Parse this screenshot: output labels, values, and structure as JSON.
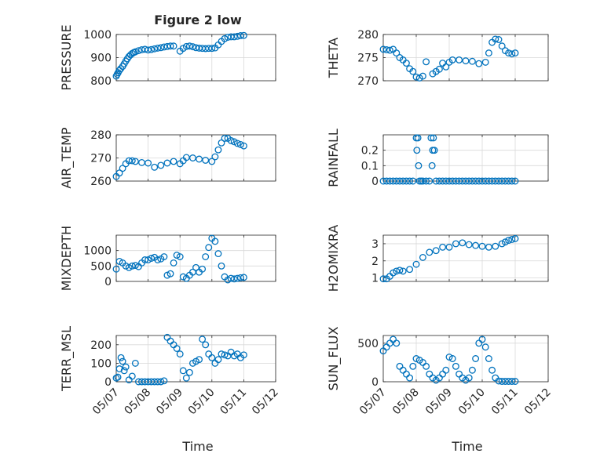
{
  "figure": {
    "title": "Figure 2 low",
    "xlabel": "Time",
    "x_tick_labels": [
      "05/07",
      "05/08",
      "05/09",
      "05/10",
      "05/11",
      "05/12"
    ]
  },
  "colors": {
    "marker": "#0072BD",
    "grid": "#d9d9d9",
    "axis": "#262626"
  },
  "chart_data": [
    {
      "type": "scatter",
      "ylabel": "PRESSURE",
      "ylim": [
        800,
        1000
      ],
      "yticks": [
        800,
        900,
        1000
      ],
      "xlim": [
        0,
        5
      ],
      "x": [
        0.0,
        0.03,
        0.06,
        0.1,
        0.14,
        0.2,
        0.25,
        0.3,
        0.35,
        0.4,
        0.45,
        0.5,
        0.55,
        0.6,
        0.7,
        0.8,
        0.9,
        1.0,
        1.1,
        1.2,
        1.3,
        1.4,
        1.5,
        1.6,
        1.7,
        1.8,
        2.0,
        2.1,
        2.2,
        2.3,
        2.4,
        2.5,
        2.6,
        2.7,
        2.8,
        2.9,
        3.0,
        3.1,
        3.2,
        3.3,
        3.4,
        3.5,
        3.6,
        3.7,
        3.8,
        3.9,
        4.0
      ],
      "y": [
        820,
        828,
        835,
        845,
        852,
        862,
        873,
        885,
        895,
        905,
        912,
        918,
        922,
        925,
        930,
        934,
        936,
        933,
        935,
        938,
        941,
        943,
        946,
        948,
        950,
        950,
        928,
        940,
        948,
        950,
        947,
        943,
        941,
        940,
        939,
        940,
        940,
        942,
        955,
        970,
        982,
        988,
        990,
        990,
        992,
        995,
        996
      ]
    },
    {
      "type": "scatter",
      "ylabel": "THETA",
      "ylim": [
        270,
        280
      ],
      "yticks": [
        270,
        275,
        280
      ],
      "xlim": [
        0,
        5
      ],
      "x": [
        0.0,
        0.1,
        0.2,
        0.3,
        0.4,
        0.5,
        0.6,
        0.7,
        0.8,
        0.9,
        1.0,
        1.1,
        1.2,
        1.3,
        1.5,
        1.6,
        1.7,
        1.8,
        1.9,
        2.0,
        2.1,
        2.3,
        2.5,
        2.7,
        2.9,
        3.1,
        3.2,
        3.3,
        3.4,
        3.5,
        3.6,
        3.7,
        3.8,
        3.9,
        4.0
      ],
      "y": [
        276.8,
        276.7,
        276.6,
        276.8,
        276.0,
        275.0,
        274.5,
        273.8,
        272.6,
        272.0,
        270.8,
        270.6,
        271.0,
        274.1,
        271.5,
        272.0,
        272.5,
        273.8,
        273.0,
        274.0,
        274.5,
        274.5,
        274.3,
        274.2,
        273.7,
        274.0,
        276.0,
        278.3,
        279.0,
        278.9,
        277.5,
        276.5,
        276.0,
        275.8,
        276.0
      ]
    },
    {
      "type": "scatter",
      "ylabel": "AIR_TEMP",
      "ylim": [
        260,
        280
      ],
      "yticks": [
        260,
        270,
        280
      ],
      "xlim": [
        0,
        5
      ],
      "x": [
        0.0,
        0.1,
        0.2,
        0.3,
        0.4,
        0.5,
        0.6,
        0.8,
        1.0,
        1.2,
        1.4,
        1.6,
        1.8,
        2.0,
        2.1,
        2.2,
        2.4,
        2.6,
        2.8,
        3.0,
        3.1,
        3.2,
        3.3,
        3.4,
        3.5,
        3.6,
        3.7,
        3.8,
        3.9,
        4.0
      ],
      "y": [
        262,
        263.5,
        265.5,
        267.5,
        268.8,
        268.8,
        268.5,
        268,
        267.8,
        266,
        266.8,
        267.8,
        268.5,
        267.5,
        268.8,
        270.2,
        270,
        269.5,
        269,
        268.5,
        270.5,
        273.5,
        276.5,
        278.5,
        278.5,
        277.5,
        277,
        276.3,
        275.8,
        275.2
      ]
    },
    {
      "type": "scatter",
      "ylabel": "RAINFALL",
      "ylim": [
        0,
        0.3
      ],
      "yticks": [
        0,
        0.1,
        0.2
      ],
      "xlim": [
        0,
        5
      ],
      "x": [
        0.0,
        0.1,
        0.2,
        0.3,
        0.4,
        0.5,
        0.6,
        0.7,
        0.8,
        0.9,
        1.0,
        1.02,
        1.05,
        1.07,
        1.1,
        1.15,
        1.2,
        1.3,
        1.4,
        1.45,
        1.48,
        1.5,
        1.52,
        1.55,
        1.6,
        1.7,
        1.8,
        1.9,
        2.0,
        2.1,
        2.2,
        2.3,
        2.4,
        2.5,
        2.6,
        2.7,
        2.8,
        2.9,
        3.0,
        3.1,
        3.2,
        3.3,
        3.4,
        3.5,
        3.6,
        3.7,
        3.8,
        3.9,
        4.0
      ],
      "y": [
        0,
        0,
        0,
        0,
        0,
        0,
        0,
        0,
        0,
        0,
        0.28,
        0.2,
        0.28,
        0.1,
        0,
        0,
        0,
        0,
        0,
        0.28,
        0.1,
        0.2,
        0.28,
        0.2,
        0,
        0,
        0,
        0,
        0,
        0,
        0,
        0,
        0,
        0,
        0,
        0,
        0,
        0,
        0,
        0,
        0,
        0,
        0,
        0,
        0,
        0,
        0,
        0,
        0
      ]
    },
    {
      "type": "scatter",
      "ylabel": "MIXDEPTH",
      "ylim": [
        0,
        1500
      ],
      "yticks": [
        0,
        500,
        1000
      ],
      "xlim": [
        0,
        5
      ],
      "x": [
        0.0,
        0.1,
        0.2,
        0.3,
        0.4,
        0.5,
        0.6,
        0.7,
        0.8,
        0.9,
        1.0,
        1.1,
        1.2,
        1.3,
        1.4,
        1.5,
        1.6,
        1.7,
        1.8,
        1.9,
        2.0,
        2.1,
        2.2,
        2.3,
        2.4,
        2.5,
        2.6,
        2.7,
        2.8,
        2.9,
        3.0,
        3.1,
        3.2,
        3.3,
        3.4,
        3.5,
        3.6,
        3.7,
        3.8,
        3.9,
        4.0
      ],
      "y": [
        400,
        650,
        600,
        500,
        450,
        500,
        520,
        480,
        600,
        700,
        700,
        750,
        780,
        700,
        730,
        800,
        200,
        250,
        600,
        850,
        800,
        150,
        100,
        200,
        300,
        450,
        300,
        400,
        800,
        1100,
        1400,
        1300,
        900,
        500,
        150,
        50,
        100,
        80,
        100,
        120,
        130
      ]
    },
    {
      "type": "scatter",
      "ylabel": "H2OMIXRA",
      "ylim": [
        0.8,
        3.5
      ],
      "yticks": [
        1,
        2,
        3
      ],
      "xlim": [
        0,
        5
      ],
      "x": [
        0.0,
        0.1,
        0.2,
        0.3,
        0.4,
        0.5,
        0.6,
        0.8,
        1.0,
        1.2,
        1.4,
        1.6,
        1.8,
        2.0,
        2.2,
        2.4,
        2.6,
        2.8,
        3.0,
        3.2,
        3.4,
        3.6,
        3.7,
        3.8,
        3.9,
        4.0
      ],
      "y": [
        0.95,
        0.95,
        1.1,
        1.3,
        1.4,
        1.45,
        1.4,
        1.5,
        1.8,
        2.2,
        2.5,
        2.6,
        2.8,
        2.8,
        3.0,
        3.05,
        2.95,
        2.9,
        2.85,
        2.8,
        2.85,
        3.0,
        3.1,
        3.2,
        3.25,
        3.3
      ]
    },
    {
      "type": "scatter",
      "ylabel": "TERR_MSL",
      "ylim": [
        0,
        250
      ],
      "yticks": [
        0,
        100,
        200
      ],
      "xlim": [
        0,
        5
      ],
      "x": [
        0.0,
        0.05,
        0.1,
        0.15,
        0.2,
        0.25,
        0.3,
        0.4,
        0.5,
        0.6,
        0.7,
        0.8,
        0.9,
        1.0,
        1.1,
        1.2,
        1.3,
        1.4,
        1.5,
        1.6,
        1.7,
        1.8,
        1.9,
        2.0,
        2.1,
        2.2,
        2.3,
        2.4,
        2.5,
        2.6,
        2.7,
        2.8,
        2.9,
        3.0,
        3.1,
        3.2,
        3.3,
        3.4,
        3.5,
        3.6,
        3.7,
        3.8,
        3.9,
        4.0
      ],
      "y": [
        20,
        25,
        70,
        130,
        110,
        60,
        80,
        10,
        30,
        100,
        0,
        0,
        0,
        0,
        0,
        0,
        0,
        0,
        5,
        240,
        220,
        200,
        180,
        150,
        60,
        20,
        50,
        100,
        110,
        120,
        230,
        200,
        150,
        130,
        100,
        120,
        150,
        145,
        140,
        160,
        140,
        150,
        130,
        145
      ]
    },
    {
      "type": "scatter",
      "ylabel": "SUN_FLUX",
      "ylim": [
        0,
        600
      ],
      "yticks": [
        0,
        500
      ],
      "xlim": [
        0,
        5
      ],
      "x": [
        0.0,
        0.1,
        0.2,
        0.3,
        0.4,
        0.5,
        0.6,
        0.7,
        0.8,
        0.9,
        1.0,
        1.1,
        1.2,
        1.3,
        1.4,
        1.5,
        1.6,
        1.7,
        1.8,
        1.9,
        2.0,
        2.1,
        2.2,
        2.3,
        2.4,
        2.5,
        2.6,
        2.7,
        2.8,
        2.9,
        3.0,
        3.1,
        3.2,
        3.3,
        3.4,
        3.5,
        3.6,
        3.7,
        3.8,
        3.9,
        4.0
      ],
      "y": [
        400,
        450,
        500,
        550,
        500,
        200,
        150,
        100,
        50,
        200,
        300,
        280,
        250,
        200,
        100,
        50,
        20,
        50,
        100,
        150,
        320,
        300,
        200,
        100,
        50,
        20,
        50,
        150,
        300,
        500,
        550,
        450,
        300,
        150,
        50,
        10,
        5,
        5,
        5,
        5,
        5
      ]
    }
  ]
}
